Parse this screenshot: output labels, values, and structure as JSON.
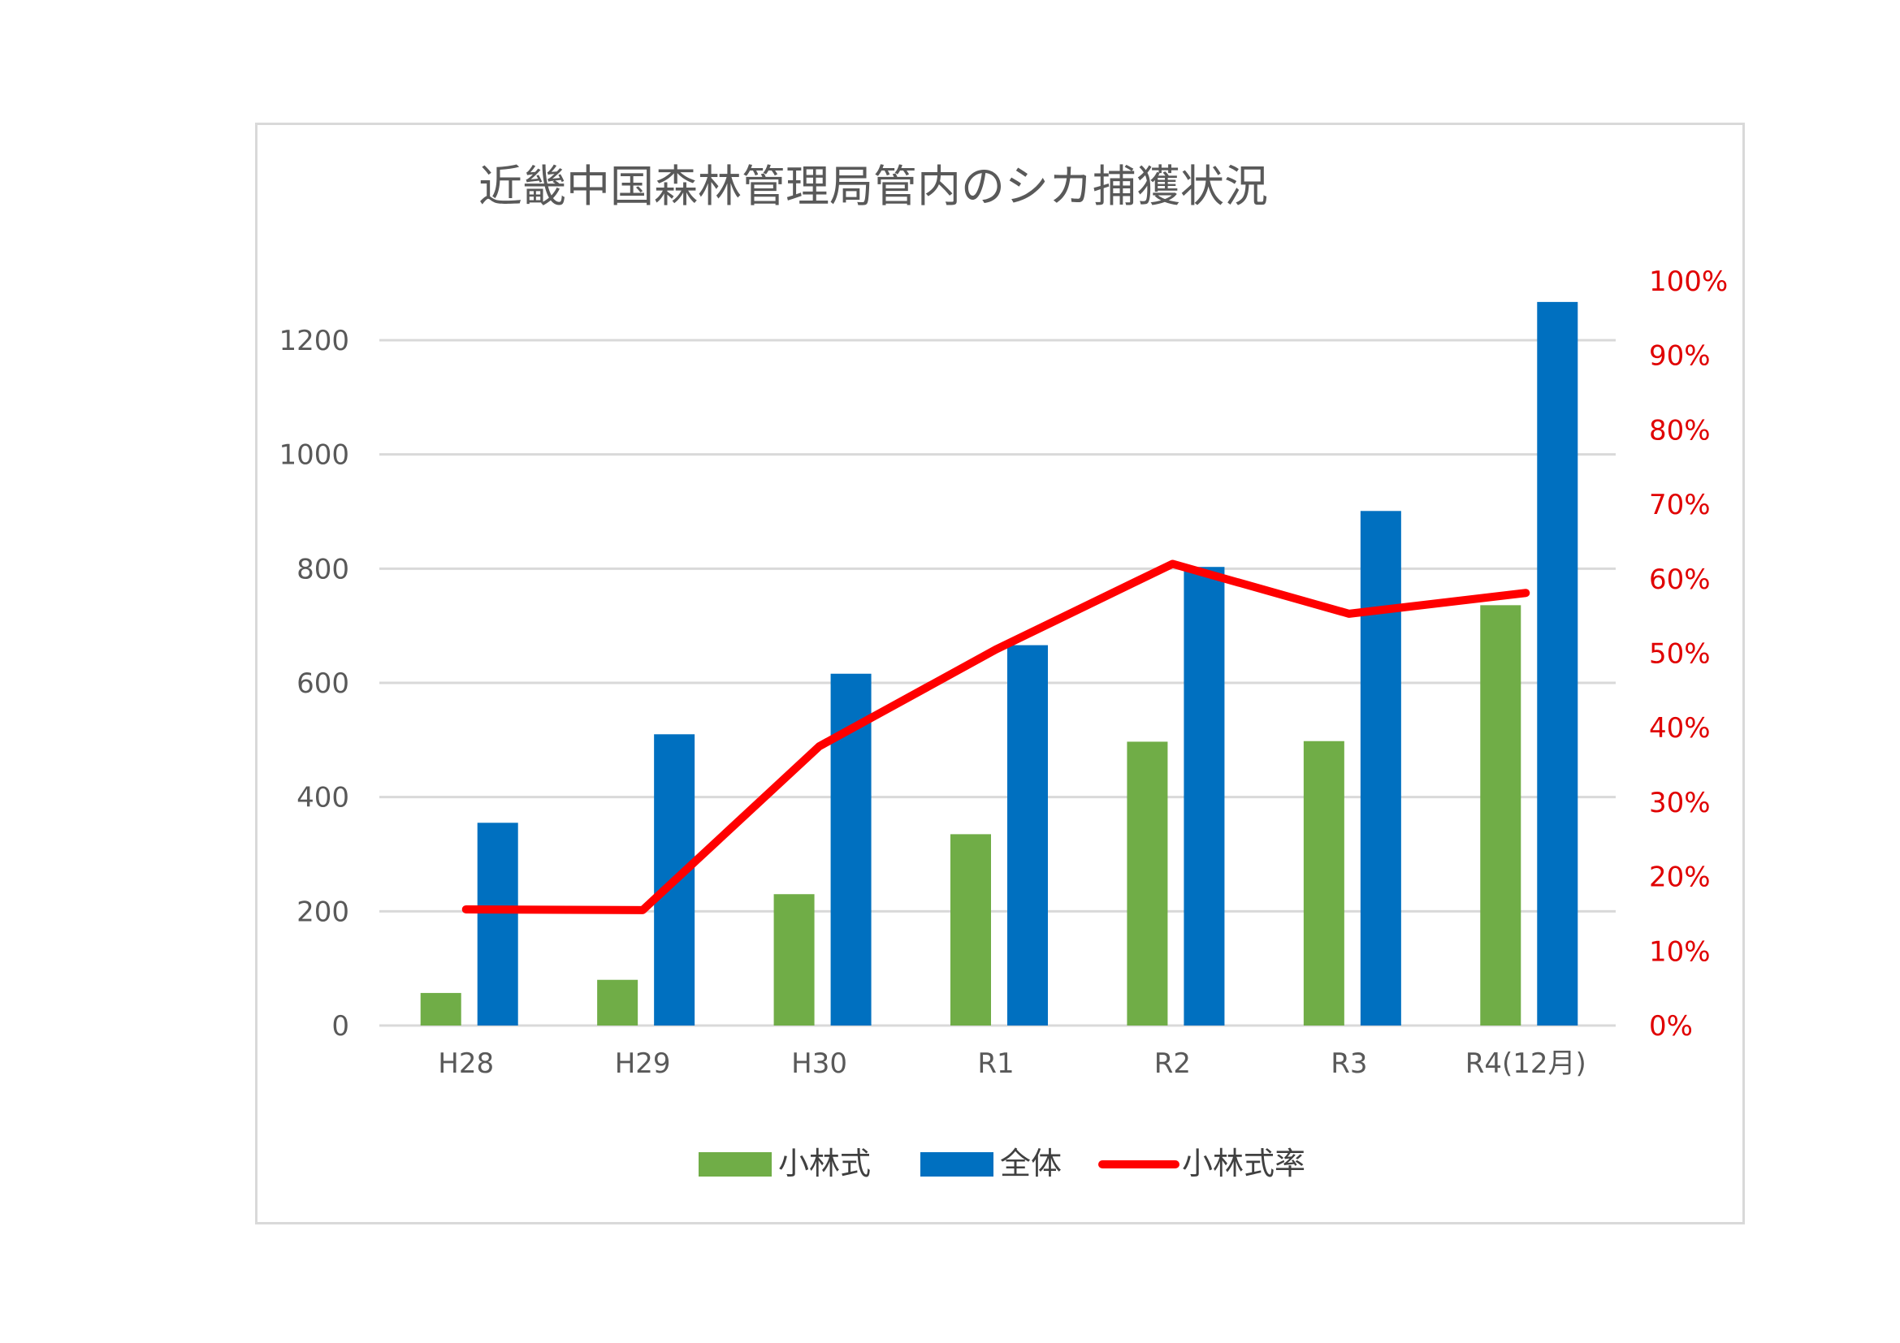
{
  "chart_data": {
    "type": "bar",
    "title": "近畿中国森林管理局管内のシカ捕獲状況",
    "categories": [
      "H28",
      "H29",
      "H30",
      "R1",
      "R2",
      "R3",
      "R4(12月)"
    ],
    "series": [
      {
        "name": "小林式",
        "type": "bar",
        "axis": "left",
        "color": "#70ad47",
        "values": [
          57,
          80,
          230,
          335,
          497,
          498,
          736
        ]
      },
      {
        "name": "全体",
        "type": "bar",
        "axis": "left",
        "color": "#0070c0",
        "values": [
          355,
          510,
          616,
          666,
          803,
          901,
          1267
        ]
      },
      {
        "name": "小林式率",
        "type": "line",
        "axis": "right",
        "color": "#ff0000",
        "values": [
          0.156,
          0.155,
          0.375,
          0.505,
          0.62,
          0.553,
          0.581
        ]
      }
    ],
    "ylim": [
      0,
      1300
    ],
    "yticks": [
      0,
      200,
      400,
      600,
      800,
      1000,
      1200
    ],
    "ylim_right": [
      0,
      1
    ],
    "yticks_right": [
      "0%",
      "10%",
      "20%",
      "30%",
      "40%",
      "50%",
      "60%",
      "70%",
      "80%",
      "90%",
      "100%"
    ],
    "grid": true,
    "legend_position": "bottom"
  }
}
